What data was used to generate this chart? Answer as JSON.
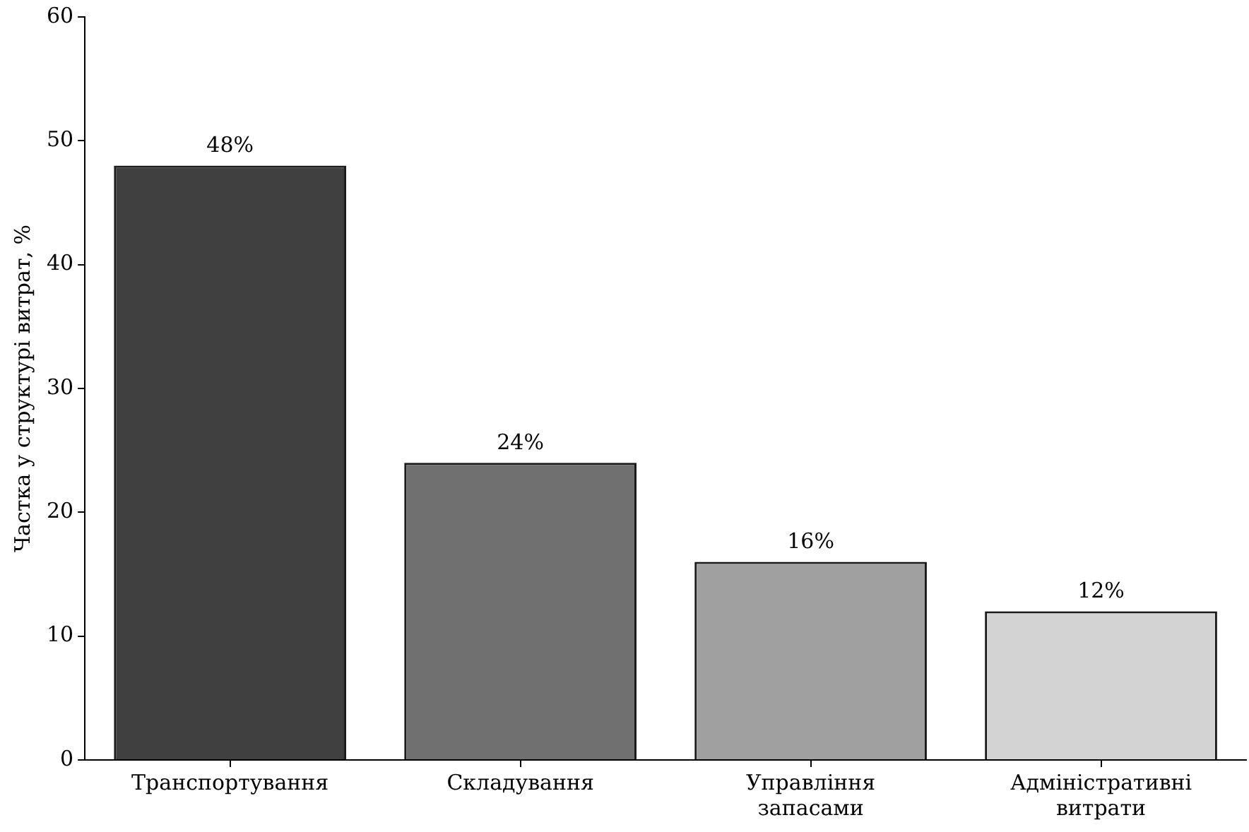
{
  "chart_data": {
    "type": "bar",
    "ylabel": "Частка у структурі витрат, %",
    "categories": [
      "Транспортування",
      "Складування",
      "Управління запасами",
      "Адміністративні витрати"
    ],
    "values": [
      48,
      24,
      16,
      12
    ],
    "colors": [
      "#404040",
      "#707070",
      "#a0a0a0",
      "#d3d3d3"
    ],
    "value_labels": [
      "48%",
      "24%",
      "16%",
      "12%"
    ],
    "ylim": [
      0,
      60
    ],
    "yticks": [
      0,
      10,
      20,
      30,
      40,
      50,
      60
    ],
    "grid": false,
    "legend": false
  }
}
